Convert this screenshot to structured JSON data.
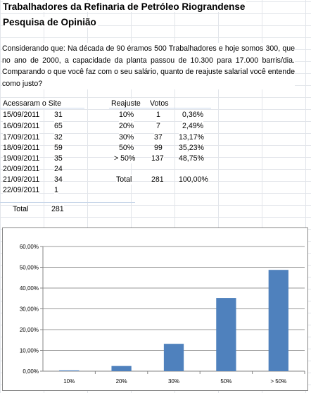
{
  "titles": {
    "line1": "Trabalhadores da Refinaria de Petróleo Riograndense",
    "line2": "Pesquisa de Opinião"
  },
  "question": "Considerando que: Na década de 90 éramos 500 Trabalhadores e hoje somos 300, que no ano de 2000, a capacidade da planta passou de 10.300 para 17.000 barris/dia. Comparando o que você faz com o seu salário, quanto de reajuste salarial você entende como justo?",
  "visits": {
    "header": "Acessaram o Site",
    "rows": [
      {
        "date": "15/09/2011",
        "count": "31"
      },
      {
        "date": "16/09/2011",
        "count": "65"
      },
      {
        "date": "17/09/2011",
        "count": "32"
      },
      {
        "date": "18/09/2011",
        "count": "59"
      },
      {
        "date": "19/09/2011",
        "count": "35"
      },
      {
        "date": "20/09/2011",
        "count": "24"
      },
      {
        "date": "21/09/2011",
        "count": "34"
      },
      {
        "date": "22/09/2011",
        "count": "1"
      }
    ],
    "total_label": "Total",
    "total_value": "281"
  },
  "votes": {
    "header_reajuste": "Reajuste",
    "header_votos": "Votos",
    "rows": [
      {
        "reajuste": "10%",
        "votos": "1",
        "pct": "0,36%"
      },
      {
        "reajuste": "20%",
        "votos": "7",
        "pct": "2,49%"
      },
      {
        "reajuste": "30%",
        "votos": "37",
        "pct": "13,17%"
      },
      {
        "reajuste": "50%",
        "votos": "99",
        "pct": "35,23%"
      },
      {
        "reajuste": "> 50%",
        "votos": "137",
        "pct": "48,75%"
      }
    ],
    "total_label": "Total",
    "total_votos": "281",
    "total_pct": "100,00%"
  },
  "chart_data": {
    "type": "bar",
    "categories": [
      "10%",
      "20%",
      "30%",
      "50%",
      "> 50%"
    ],
    "values": [
      0.36,
      2.49,
      13.17,
      35.23,
      48.75
    ],
    "ylim": [
      0,
      60
    ],
    "yticks": [
      0,
      10,
      20,
      30,
      40,
      50,
      60
    ],
    "ytick_labels": [
      "0,00%",
      "10,00%",
      "20,00%",
      "30,00%",
      "40,00%",
      "50,00%",
      "60,00%"
    ],
    "bar_color": "#4f81bd",
    "grid": true,
    "legend": false
  }
}
